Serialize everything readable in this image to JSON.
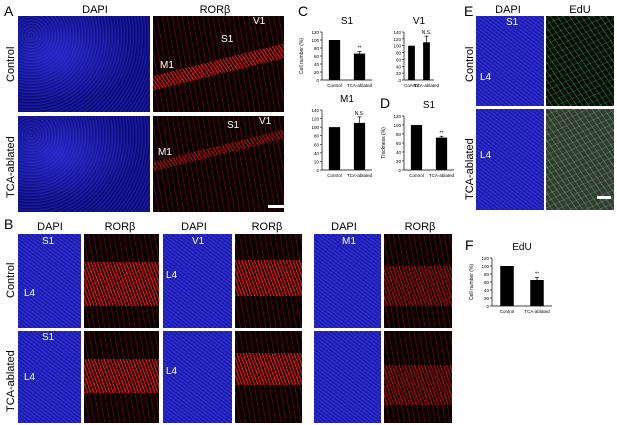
{
  "panels": {
    "A": {
      "label": "A",
      "channels": [
        "DAPI",
        "RORβ"
      ],
      "rows": [
        "Control",
        "TCA-ablated"
      ],
      "annot_top": [
        "S1",
        "V1",
        "M1"
      ],
      "annot_bottom": [
        "S1",
        "V1",
        "M1"
      ]
    },
    "B": {
      "label": "B",
      "channels": [
        "DAPI",
        "RORβ",
        "DAPI",
        "RORβ",
        "DAPI",
        "RORβ"
      ],
      "rows": [
        "Control",
        "TCA-ablated"
      ],
      "areas": [
        "S1",
        "V1",
        "M1"
      ],
      "layer": "L4"
    },
    "C": {
      "label": "C"
    },
    "D": {
      "label": "D"
    },
    "E": {
      "label": "E",
      "channels": [
        "DAPI",
        "EdU"
      ],
      "rows": [
        "Control",
        "TCA-ablated"
      ],
      "area": "S1",
      "layer": "L4"
    },
    "F": {
      "label": "F"
    }
  },
  "chart_data": [
    {
      "id": "C-S1",
      "type": "bar",
      "title": "S1",
      "ylabel": "Cell number (%)",
      "categories": [
        "Control",
        "TCA-ablated"
      ],
      "values": [
        100,
        66
      ],
      "errors": [
        0,
        5
      ],
      "ylim": [
        0,
        120
      ],
      "yticks": [
        0,
        20,
        40,
        60,
        80,
        100,
        120
      ],
      "annotations": [
        "",
        "**"
      ]
    },
    {
      "id": "C-V1",
      "type": "bar",
      "title": "V1",
      "ylabel": "",
      "categories": [
        "Control",
        "TCA-ablated"
      ],
      "values": [
        100,
        110
      ],
      "errors": [
        0,
        18
      ],
      "ylim": [
        0,
        140
      ],
      "yticks": [
        0,
        20,
        40,
        60,
        80,
        100,
        120,
        140
      ],
      "annotations": [
        "",
        "N.S."
      ]
    },
    {
      "id": "C-M1",
      "type": "bar",
      "title": "M1",
      "ylabel": "",
      "categories": [
        "Control",
        "TCA-ablated"
      ],
      "values": [
        100,
        110
      ],
      "errors": [
        0,
        14
      ],
      "ylim": [
        0,
        140
      ],
      "yticks": [
        0,
        20,
        40,
        60,
        80,
        100,
        120,
        140
      ],
      "annotations": [
        "",
        "N.S."
      ]
    },
    {
      "id": "D-S1",
      "type": "bar",
      "title": "S1",
      "ylabel": "Thickness (%)",
      "categories": [
        "Control",
        "TCA-ablated"
      ],
      "values": [
        100,
        72
      ],
      "errors": [
        0,
        3
      ],
      "ylim": [
        0,
        120
      ],
      "yticks": [
        0,
        20,
        40,
        60,
        80,
        100,
        120
      ],
      "annotations": [
        "",
        "**"
      ]
    },
    {
      "id": "F-EdU",
      "type": "bar",
      "title": "EdU",
      "ylabel": "Cell number (%)",
      "categories": [
        "Control",
        "TCA-ablated"
      ],
      "values": [
        100,
        65
      ],
      "errors": [
        0,
        6
      ],
      "ylim": [
        0,
        120
      ],
      "yticks": [
        0,
        20,
        40,
        60,
        80,
        100,
        120
      ],
      "annotations": [
        "",
        "**"
      ]
    }
  ]
}
